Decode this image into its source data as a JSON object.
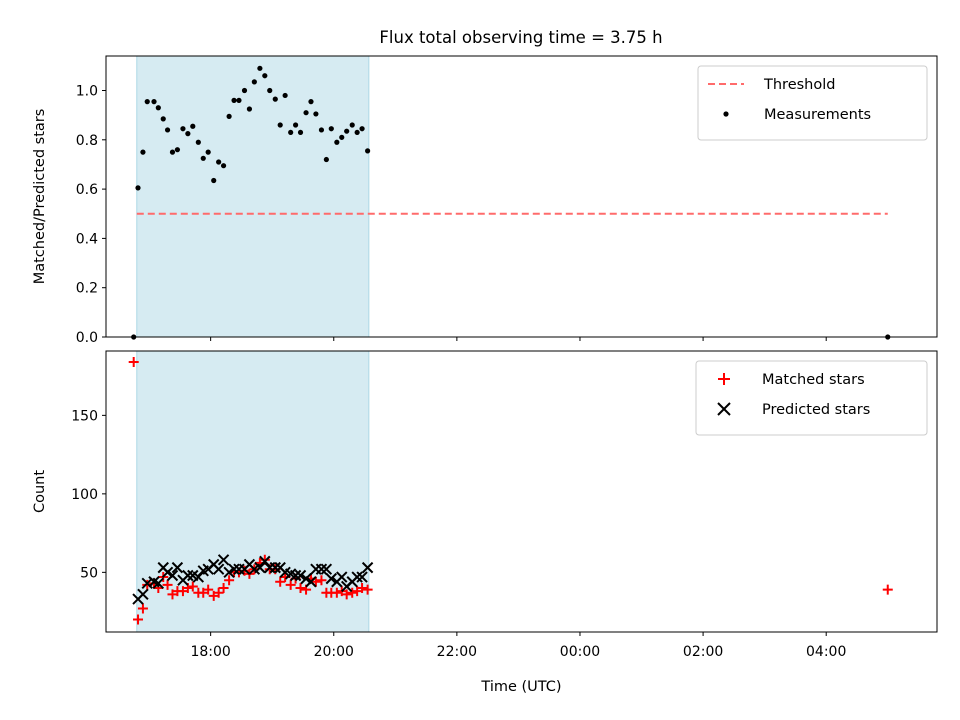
{
  "title": "Flux total observing time = 3.75 h",
  "chart_data": [
    {
      "type": "scatter",
      "panel": "top",
      "ylabel": "Matched/Predicted stars",
      "xlabel": "",
      "ylim": [
        0,
        1.14
      ],
      "yticks": [
        "0.0",
        "0.2",
        "0.4",
        "0.6",
        "0.8",
        "1.0"
      ],
      "xlim": [
        16.3,
        29.8
      ],
      "shaded_span": [
        16.8,
        20.57
      ],
      "shade_color": "#add8e6",
      "legend_position": "upper right",
      "threshold": {
        "name": "Threshold",
        "y": 0.5,
        "x_start": 16.8,
        "x_end": 29.0,
        "color": "#ff6b6b"
      },
      "series": [
        {
          "name": "Measurements",
          "color": "#000000",
          "points": [
            [
              16.75,
              0.0
            ],
            [
              16.82,
              0.605
            ],
            [
              16.9,
              0.75
            ],
            [
              16.97,
              0.955
            ],
            [
              17.08,
              0.955
            ],
            [
              17.15,
              0.93
            ],
            [
              17.23,
              0.885
            ],
            [
              17.3,
              0.84
            ],
            [
              17.38,
              0.75
            ],
            [
              17.46,
              0.76
            ],
            [
              17.55,
              0.845
            ],
            [
              17.63,
              0.825
            ],
            [
              17.71,
              0.855
            ],
            [
              17.8,
              0.79
            ],
            [
              17.88,
              0.725
            ],
            [
              17.96,
              0.75
            ],
            [
              18.05,
              0.635
            ],
            [
              18.13,
              0.71
            ],
            [
              18.21,
              0.695
            ],
            [
              18.3,
              0.895
            ],
            [
              18.38,
              0.96
            ],
            [
              18.46,
              0.96
            ],
            [
              18.55,
              1.0
            ],
            [
              18.63,
              0.925
            ],
            [
              18.71,
              1.035
            ],
            [
              18.8,
              1.09
            ],
            [
              18.88,
              1.06
            ],
            [
              18.96,
              1.0
            ],
            [
              19.05,
              0.965
            ],
            [
              19.13,
              0.86
            ],
            [
              19.21,
              0.98
            ],
            [
              19.3,
              0.83
            ],
            [
              19.38,
              0.86
            ],
            [
              19.46,
              0.83
            ],
            [
              19.55,
              0.91
            ],
            [
              19.63,
              0.955
            ],
            [
              19.71,
              0.905
            ],
            [
              19.8,
              0.84
            ],
            [
              19.88,
              0.72
            ],
            [
              19.96,
              0.845
            ],
            [
              20.05,
              0.79
            ],
            [
              20.13,
              0.81
            ],
            [
              20.21,
              0.835
            ],
            [
              20.3,
              0.86
            ],
            [
              20.38,
              0.83
            ],
            [
              20.46,
              0.845
            ],
            [
              20.55,
              0.755
            ],
            [
              29.0,
              0.0
            ]
          ]
        }
      ]
    },
    {
      "type": "scatter",
      "panel": "bottom",
      "ylabel": "Count",
      "xlabel": "Time (UTC)",
      "ylim": [
        12,
        191
      ],
      "yticks": [
        "50",
        "100",
        "150"
      ],
      "xlim": [
        16.3,
        29.8
      ],
      "xticks": [
        "18:00",
        "20:00",
        "22:00",
        "00:00",
        "02:00",
        "04:00"
      ],
      "shaded_span": [
        16.8,
        20.57
      ],
      "shade_color": "#add8e6",
      "legend_position": "upper right",
      "series": [
        {
          "name": "Matched stars",
          "color": "#ff0000",
          "marker": "plus",
          "points": [
            [
              16.75,
              184
            ],
            [
              16.82,
              20
            ],
            [
              16.9,
              27
            ],
            [
              16.97,
              42
            ],
            [
              17.08,
              43
            ],
            [
              17.15,
              40
            ],
            [
              17.23,
              47
            ],
            [
              17.3,
              42
            ],
            [
              17.38,
              36
            ],
            [
              17.46,
              38
            ],
            [
              17.55,
              38
            ],
            [
              17.63,
              40
            ],
            [
              17.71,
              41
            ],
            [
              17.8,
              37
            ],
            [
              17.88,
              37
            ],
            [
              17.96,
              39
            ],
            [
              18.05,
              35
            ],
            [
              18.13,
              37
            ],
            [
              18.21,
              40
            ],
            [
              18.3,
              45
            ],
            [
              18.38,
              50
            ],
            [
              18.46,
              50
            ],
            [
              18.55,
              51
            ],
            [
              18.63,
              49
            ],
            [
              18.71,
              52
            ],
            [
              18.8,
              56
            ],
            [
              18.88,
              58
            ],
            [
              18.96,
              52
            ],
            [
              19.05,
              52
            ],
            [
              19.13,
              44
            ],
            [
              19.21,
              47
            ],
            [
              19.3,
              42
            ],
            [
              19.38,
              46
            ],
            [
              19.46,
              40
            ],
            [
              19.55,
              39
            ],
            [
              19.63,
              46
            ],
            [
              19.71,
              44
            ],
            [
              19.8,
              45
            ],
            [
              19.88,
              37
            ],
            [
              19.96,
              37
            ],
            [
              20.05,
              37
            ],
            [
              20.13,
              38
            ],
            [
              20.21,
              36
            ],
            [
              20.3,
              37
            ],
            [
              20.38,
              38
            ],
            [
              20.46,
              40
            ],
            [
              20.55,
              39
            ],
            [
              29.0,
              39
            ]
          ]
        },
        {
          "name": "Predicted stars",
          "color": "#000000",
          "marker": "x",
          "points": [
            [
              16.82,
              33
            ],
            [
              16.9,
              36
            ],
            [
              16.97,
              43
            ],
            [
              17.08,
              44
            ],
            [
              17.15,
              43
            ],
            [
              17.23,
              53
            ],
            [
              17.3,
              50
            ],
            [
              17.38,
              48
            ],
            [
              17.46,
              53
            ],
            [
              17.55,
              45
            ],
            [
              17.63,
              48
            ],
            [
              17.71,
              48
            ],
            [
              17.8,
              47
            ],
            [
              17.88,
              51
            ],
            [
              17.96,
              52
            ],
            [
              18.05,
              55
            ],
            [
              18.13,
              52
            ],
            [
              18.21,
              58
            ],
            [
              18.3,
              50
            ],
            [
              18.38,
              52
            ],
            [
              18.46,
              52
            ],
            [
              18.55,
              52
            ],
            [
              18.63,
              55
            ],
            [
              18.71,
              52
            ],
            [
              18.8,
              53
            ],
            [
              18.88,
              57
            ],
            [
              18.96,
              53
            ],
            [
              19.05,
              53
            ],
            [
              19.13,
              53
            ],
            [
              19.21,
              50
            ],
            [
              19.3,
              49
            ],
            [
              19.38,
              48
            ],
            [
              19.46,
              48
            ],
            [
              19.55,
              46
            ],
            [
              19.63,
              44
            ],
            [
              19.71,
              52
            ],
            [
              19.8,
              52
            ],
            [
              19.88,
              52
            ],
            [
              19.96,
              46
            ],
            [
              20.05,
              44
            ],
            [
              20.13,
              47
            ],
            [
              20.21,
              41
            ],
            [
              20.3,
              44
            ],
            [
              20.38,
              47
            ],
            [
              20.46,
              47
            ],
            [
              20.55,
              53
            ]
          ]
        }
      ]
    }
  ]
}
